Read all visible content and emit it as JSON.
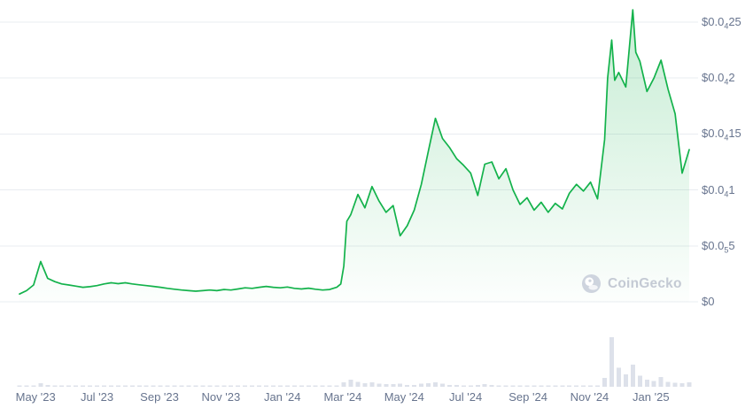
{
  "watermark": {
    "text": "CoinGecko"
  },
  "colors": {
    "background": "#ffffff",
    "line": "#13b24b",
    "fill_top": "rgba(19,178,75,0.24)",
    "fill_bottom": "rgba(19,178,75,0.01)",
    "grid": "#e9ecf1",
    "axis_text": "#67748e",
    "volume_bar": "#dde1ea",
    "watermark_text": "#c4cad4"
  },
  "chart_data": {
    "type": "line",
    "title": "",
    "legend": "none",
    "grid": "horizontal",
    "x_axis": {
      "domain": [
        "2023-04-15",
        "2025-02-08"
      ],
      "ticks": [
        {
          "date": "2023-05-01",
          "label": "May '23"
        },
        {
          "date": "2023-07-01",
          "label": "Jul '23"
        },
        {
          "date": "2023-09-01",
          "label": "Sep '23"
        },
        {
          "date": "2023-11-01",
          "label": "Nov '23"
        },
        {
          "date": "2024-01-01",
          "label": "Jan '24"
        },
        {
          "date": "2024-03-01",
          "label": "Mar '24"
        },
        {
          "date": "2024-05-01",
          "label": "May '24"
        },
        {
          "date": "2024-07-01",
          "label": "Jul '24"
        },
        {
          "date": "2024-09-01",
          "label": "Sep '24"
        },
        {
          "date": "2024-11-01",
          "label": "Nov '24"
        },
        {
          "date": "2025-01-01",
          "label": "Jan '25"
        }
      ]
    },
    "y_axis": {
      "range": [
        0,
        2.5e-05
      ],
      "ticks": [
        {
          "value": 0,
          "pre": "$0",
          "sub": "",
          "post": ""
        },
        {
          "value": 5e-06,
          "pre": "$0.0",
          "sub": "5",
          "post": "5"
        },
        {
          "value": 1e-05,
          "pre": "$0.0",
          "sub": "4",
          "post": "1"
        },
        {
          "value": 1.5e-05,
          "pre": "$0.0",
          "sub": "4",
          "post": "15"
        },
        {
          "value": 2e-05,
          "pre": "$0.0",
          "sub": "4",
          "post": "2"
        },
        {
          "value": 2.5e-05,
          "pre": "$0.0",
          "sub": "4",
          "post": "25"
        }
      ]
    },
    "price_series": {
      "name": "Price (USD)",
      "points": [
        [
          "2023-04-15",
          7e-07
        ],
        [
          "2023-04-22",
          1e-06
        ],
        [
          "2023-04-29",
          1.5e-06
        ],
        [
          "2023-05-06",
          3.6e-06
        ],
        [
          "2023-05-13",
          2.1e-06
        ],
        [
          "2023-05-20",
          1.8e-06
        ],
        [
          "2023-05-27",
          1.6e-06
        ],
        [
          "2023-06-03",
          1.5e-06
        ],
        [
          "2023-06-10",
          1.4e-06
        ],
        [
          "2023-06-17",
          1.3e-06
        ],
        [
          "2023-06-24",
          1.35e-06
        ],
        [
          "2023-07-01",
          1.45e-06
        ],
        [
          "2023-07-08",
          1.6e-06
        ],
        [
          "2023-07-15",
          1.7e-06
        ],
        [
          "2023-07-22",
          1.62e-06
        ],
        [
          "2023-07-29",
          1.7e-06
        ],
        [
          "2023-08-05",
          1.6e-06
        ],
        [
          "2023-08-12",
          1.52e-06
        ],
        [
          "2023-08-19",
          1.45e-06
        ],
        [
          "2023-08-26",
          1.38e-06
        ],
        [
          "2023-09-02",
          1.3e-06
        ],
        [
          "2023-09-09",
          1.2e-06
        ],
        [
          "2023-09-16",
          1.12e-06
        ],
        [
          "2023-09-23",
          1.05e-06
        ],
        [
          "2023-09-30",
          1e-06
        ],
        [
          "2023-10-07",
          9.5e-07
        ],
        [
          "2023-10-14",
          1e-06
        ],
        [
          "2023-10-21",
          1.05e-06
        ],
        [
          "2023-10-28",
          1e-06
        ],
        [
          "2023-11-04",
          1.1e-06
        ],
        [
          "2023-11-11",
          1.05e-06
        ],
        [
          "2023-11-18",
          1.15e-06
        ],
        [
          "2023-11-25",
          1.25e-06
        ],
        [
          "2023-12-02",
          1.2e-06
        ],
        [
          "2023-12-09",
          1.3e-06
        ],
        [
          "2023-12-16",
          1.38e-06
        ],
        [
          "2023-12-23",
          1.3e-06
        ],
        [
          "2023-12-30",
          1.25e-06
        ],
        [
          "2024-01-06",
          1.32e-06
        ],
        [
          "2024-01-13",
          1.2e-06
        ],
        [
          "2024-01-20",
          1.15e-06
        ],
        [
          "2024-01-27",
          1.22e-06
        ],
        [
          "2024-02-03",
          1.12e-06
        ],
        [
          "2024-02-10",
          1.05e-06
        ],
        [
          "2024-02-17",
          1.1e-06
        ],
        [
          "2024-02-24",
          1.3e-06
        ],
        [
          "2024-02-28",
          1.6e-06
        ],
        [
          "2024-03-02",
          3.2e-06
        ],
        [
          "2024-03-05",
          7.2e-06
        ],
        [
          "2024-03-09",
          7.8e-06
        ],
        [
          "2024-03-16",
          9.6e-06
        ],
        [
          "2024-03-23",
          8.4e-06
        ],
        [
          "2024-03-30",
          1.03e-05
        ],
        [
          "2024-04-06",
          9e-06
        ],
        [
          "2024-04-13",
          8e-06
        ],
        [
          "2024-04-20",
          8.6e-06
        ],
        [
          "2024-04-27",
          5.9e-06
        ],
        [
          "2024-05-04",
          6.8e-06
        ],
        [
          "2024-05-11",
          8.2e-06
        ],
        [
          "2024-05-18",
          1.05e-05
        ],
        [
          "2024-05-25",
          1.35e-05
        ],
        [
          "2024-06-01",
          1.64e-05
        ],
        [
          "2024-06-08",
          1.46e-05
        ],
        [
          "2024-06-15",
          1.38e-05
        ],
        [
          "2024-06-22",
          1.28e-05
        ],
        [
          "2024-06-29",
          1.22e-05
        ],
        [
          "2024-07-06",
          1.15e-05
        ],
        [
          "2024-07-13",
          9.5e-06
        ],
        [
          "2024-07-20",
          1.23e-05
        ],
        [
          "2024-07-27",
          1.25e-05
        ],
        [
          "2024-08-03",
          1.1e-05
        ],
        [
          "2024-08-10",
          1.19e-05
        ],
        [
          "2024-08-17",
          1e-05
        ],
        [
          "2024-08-24",
          8.7e-06
        ],
        [
          "2024-08-31",
          9.3e-06
        ],
        [
          "2024-09-07",
          8.2e-06
        ],
        [
          "2024-09-14",
          8.9e-06
        ],
        [
          "2024-09-21",
          8e-06
        ],
        [
          "2024-09-28",
          8.8e-06
        ],
        [
          "2024-10-05",
          8.3e-06
        ],
        [
          "2024-10-12",
          9.7e-06
        ],
        [
          "2024-10-19",
          1.05e-05
        ],
        [
          "2024-10-26",
          9.9e-06
        ],
        [
          "2024-11-02",
          1.07e-05
        ],
        [
          "2024-11-09",
          9.2e-06
        ],
        [
          "2024-11-16",
          1.45e-05
        ],
        [
          "2024-11-19",
          2e-05
        ],
        [
          "2024-11-23",
          2.34e-05
        ],
        [
          "2024-11-26",
          1.98e-05
        ],
        [
          "2024-11-30",
          2.05e-05
        ],
        [
          "2024-12-07",
          1.92e-05
        ],
        [
          "2024-12-14",
          2.61e-05
        ],
        [
          "2024-12-17",
          2.23e-05
        ],
        [
          "2024-12-21",
          2.15e-05
        ],
        [
          "2024-12-28",
          1.88e-05
        ],
        [
          "2025-01-04",
          2e-05
        ],
        [
          "2025-01-11",
          2.16e-05
        ],
        [
          "2025-01-18",
          1.9e-05
        ],
        [
          "2025-01-25",
          1.68e-05
        ],
        [
          "2025-01-28",
          1.45e-05
        ],
        [
          "2025-02-01",
          1.15e-05
        ],
        [
          "2025-02-08",
          1.36e-05
        ]
      ]
    },
    "volume_series": {
      "name": "Volume",
      "start": "2023-04-15",
      "interval_days": 7,
      "values": [
        2,
        2,
        3,
        7,
        4,
        2,
        2,
        2,
        1,
        1,
        1,
        2,
        2,
        3,
        2,
        2,
        2,
        1,
        1,
        1,
        1,
        1,
        1,
        1,
        1,
        1,
        1,
        1,
        1,
        2,
        1,
        2,
        2,
        2,
        2,
        2,
        1,
        1,
        2,
        1,
        1,
        1,
        1,
        1,
        1,
        2,
        9,
        14,
        10,
        7,
        9,
        6,
        5,
        5,
        6,
        4,
        4,
        6,
        7,
        9,
        6,
        4,
        4,
        3,
        3,
        4,
        5,
        4,
        3,
        3,
        3,
        2,
        2,
        2,
        2,
        2,
        2,
        2,
        3,
        3,
        2,
        3,
        3,
        18,
        100,
        38,
        25,
        45,
        22,
        14,
        12,
        20,
        10,
        8,
        7,
        9
      ]
    }
  }
}
